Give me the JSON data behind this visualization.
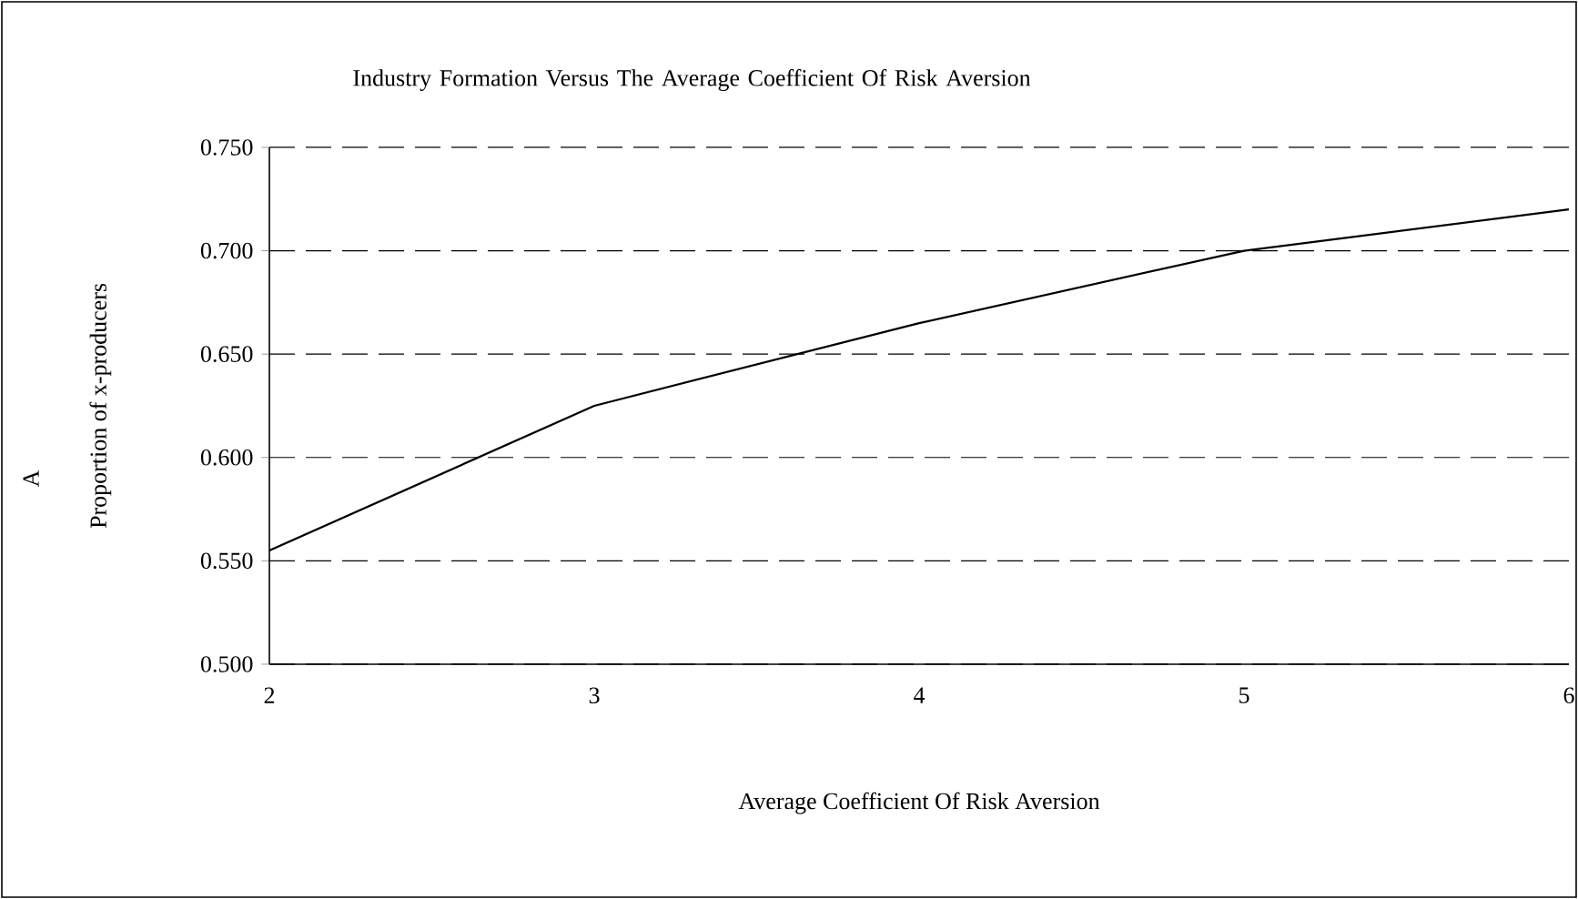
{
  "chart_data": {
    "type": "line",
    "title": "Industry Formation Versus The Average Coefficient Of Risk Aversion",
    "xlabel": "Average Coefficient Of Risk Aversion",
    "ylabel": "Proportion of x-producers",
    "annotations": [
      "A"
    ],
    "x": [
      2,
      3,
      4,
      5,
      6
    ],
    "series": [
      {
        "color": "#000000",
        "values": [
          0.555,
          0.625,
          0.665,
          0.7,
          0.72
        ]
      }
    ],
    "xlim": [
      2,
      6
    ],
    "xticks": [
      2,
      3,
      4,
      5,
      6
    ],
    "ylim": [
      0.5,
      0.75
    ],
    "yticks": [
      {
        "value": 0.5,
        "label": "0.500"
      },
      {
        "value": 0.55,
        "label": "0.550"
      },
      {
        "value": 0.6,
        "label": "0.600"
      },
      {
        "value": 0.65,
        "label": "0.650"
      },
      {
        "value": 0.7,
        "label": "0.700"
      },
      {
        "value": 0.75,
        "label": "0.750"
      }
    ],
    "grid": "y",
    "marker": "none",
    "line_style": "solid"
  }
}
